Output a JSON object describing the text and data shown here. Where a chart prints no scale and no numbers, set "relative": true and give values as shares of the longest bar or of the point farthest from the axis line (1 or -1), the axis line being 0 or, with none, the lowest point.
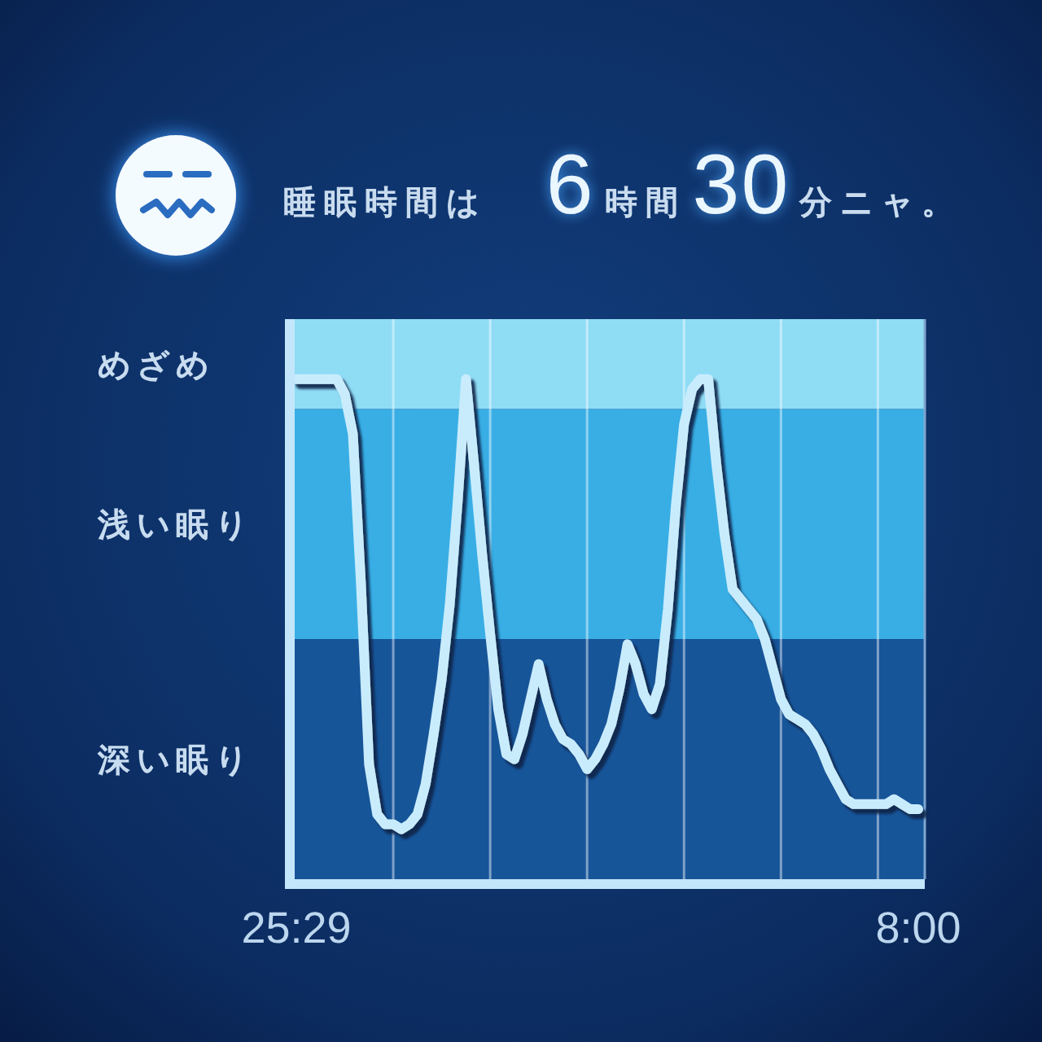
{
  "chart_data": {
    "type": "line",
    "title": "睡眠時間は 6時間30分ニャ。",
    "relative": true,
    "categories": [
      "25:29",
      null,
      null,
      null,
      null,
      null,
      null,
      null,
      null,
      null,
      null,
      null,
      null,
      null,
      null,
      null,
      null,
      null,
      null,
      null,
      null,
      null,
      null,
      null,
      null,
      null,
      null,
      null,
      null,
      null,
      null,
      null,
      null,
      null,
      null,
      null,
      null,
      null,
      null,
      null,
      null,
      null,
      null,
      null,
      null,
      null,
      null,
      null,
      null,
      null,
      null,
      null,
      null,
      null,
      null,
      null,
      null,
      null,
      null,
      null,
      null,
      null,
      null,
      null,
      null,
      null,
      null,
      null,
      null,
      null,
      null,
      null,
      null,
      null,
      null,
      null,
      null,
      "8:00"
    ],
    "values": [
      1.0,
      1.0,
      1.0,
      1.0,
      1.0,
      1.0,
      0.97,
      0.89,
      0.59,
      0.23,
      0.13,
      0.11,
      0.11,
      0.1,
      0.11,
      0.13,
      0.19,
      0.29,
      0.4,
      0.55,
      0.76,
      1.0,
      0.83,
      0.65,
      0.49,
      0.34,
      0.25,
      0.24,
      0.29,
      0.36,
      0.43,
      0.36,
      0.31,
      0.28,
      0.27,
      0.25,
      0.22,
      0.24,
      0.27,
      0.31,
      0.38,
      0.47,
      0.43,
      0.37,
      0.34,
      0.39,
      0.54,
      0.75,
      0.91,
      0.98,
      1.0,
      1.0,
      0.83,
      0.69,
      0.58,
      0.56,
      0.54,
      0.52,
      0.48,
      0.42,
      0.36,
      0.33,
      0.32,
      0.31,
      0.29,
      0.26,
      0.22,
      0.19,
      0.16,
      0.15,
      0.15,
      0.15,
      0.15,
      0.15,
      0.16,
      0.15,
      0.14,
      0.14
    ],
    "color": "#c9ecfd",
    "grid": "x",
    "bands": [
      {
        "axis": "y",
        "from": 0.94,
        "to": 1.12,
        "label": "めざめ",
        "color": "#8fdcf5"
      },
      {
        "axis": "y",
        "from": 0.48,
        "to": 0.94,
        "label": "浅い眠り",
        "color": "#38aee5"
      },
      {
        "axis": "y",
        "from": 0,
        "to": 0.48,
        "label": "深い眠り",
        "color": "#175599"
      }
    ]
  }
}
